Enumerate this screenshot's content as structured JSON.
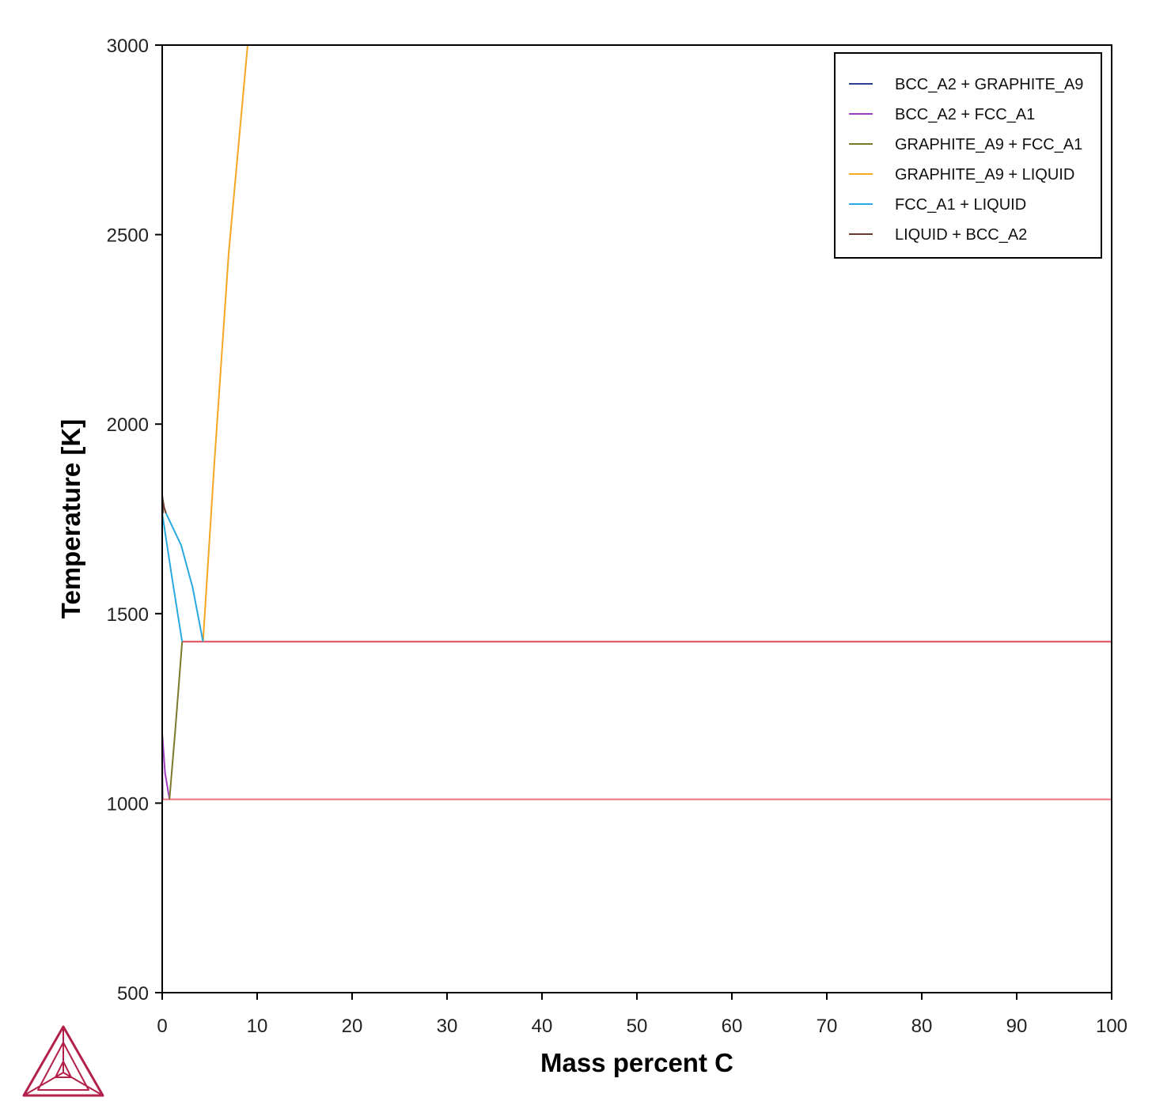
{
  "chart_data": {
    "type": "line",
    "xlabel": "Mass percent C",
    "ylabel": "Temperature [K]",
    "xlim": [
      0,
      100
    ],
    "ylim": [
      500,
      3000
    ],
    "xticks": [
      0,
      10,
      20,
      30,
      40,
      50,
      60,
      70,
      80,
      90,
      100
    ],
    "yticks": [
      500,
      1000,
      1500,
      2000,
      2500,
      3000
    ],
    "grid": false,
    "legend_position": "top-right",
    "series": [
      {
        "name": "BCC_A2 + GRAPHITE_A9",
        "color": "#2d3f8f",
        "segments": [
          [
            [
              0.0,
              500
            ],
            [
              0.0,
              1010
            ]
          ],
          [
            [
              100,
              500
            ],
            [
              100,
              1010
            ]
          ]
        ]
      },
      {
        "name": "BCC_A2 + FCC_A1",
        "color": "#a23ec3",
        "segments": [
          [
            [
              0.0,
              1185
            ],
            [
              0.02,
              1080
            ],
            [
              0.05,
              1010
            ]
          ],
          [
            [
              0.0,
              1185
            ],
            [
              0.3,
              1080
            ],
            [
              0.77,
              1010
            ]
          ]
        ]
      },
      {
        "name": "GRAPHITE_A9 + FCC_A1",
        "color": "#7b7a2a",
        "segments": [
          [
            [
              0.77,
              1010
            ],
            [
              1.4,
              1200
            ],
            [
              2.1,
              1426
            ]
          ],
          [
            [
              100,
              1010
            ],
            [
              100,
              1426
            ]
          ]
        ]
      },
      {
        "name": "GRAPHITE_A9 + LIQUID",
        "color": "#f5a623",
        "segments": [
          [
            [
              4.3,
              1426
            ],
            [
              5.5,
              1900
            ],
            [
              7.0,
              2450
            ],
            [
              9.0,
              3000
            ]
          ],
          [
            [
              100,
              1426
            ],
            [
              100,
              3000
            ]
          ]
        ]
      },
      {
        "name": "FCC_A1 + LIQUID",
        "color": "#29a9e0",
        "segments": [
          [
            [
              0.0,
              1765
            ],
            [
              1.0,
              1600
            ],
            [
              2.1,
              1426
            ]
          ],
          [
            [
              0.4,
              1765
            ],
            [
              2.0,
              1680
            ],
            [
              3.2,
              1570
            ],
            [
              4.3,
              1426
            ]
          ]
        ]
      },
      {
        "name": "LIQUID + BCC_A2",
        "color": "#6b3a2e",
        "segments": [
          [
            [
              0.0,
              1811
            ],
            [
              0.2,
              1780
            ],
            [
              0.4,
              1765
            ]
          ],
          [
            [
              0.0,
              1811
            ],
            [
              0.05,
              1780
            ],
            [
              0.1,
              1765
            ]
          ]
        ]
      }
    ],
    "invariants": [
      {
        "color": "#e0485a",
        "y": 1426,
        "x": [
          2.1,
          100
        ]
      },
      {
        "color": "#f07080",
        "y": 1010,
        "x": [
          0.0,
          100
        ]
      }
    ]
  },
  "logo": {
    "name": "triangle-logo-icon",
    "color": "#b3204a"
  }
}
